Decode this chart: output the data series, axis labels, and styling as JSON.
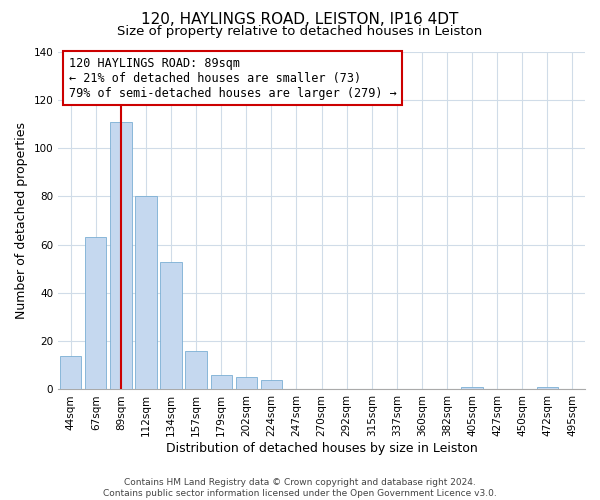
{
  "title": "120, HAYLINGS ROAD, LEISTON, IP16 4DT",
  "subtitle": "Size of property relative to detached houses in Leiston",
  "xlabel": "Distribution of detached houses by size in Leiston",
  "ylabel": "Number of detached properties",
  "footer_line1": "Contains HM Land Registry data © Crown copyright and database right 2024.",
  "footer_line2": "Contains public sector information licensed under the Open Government Licence v3.0.",
  "bar_labels": [
    "44sqm",
    "67sqm",
    "89sqm",
    "112sqm",
    "134sqm",
    "157sqm",
    "179sqm",
    "202sqm",
    "224sqm",
    "247sqm",
    "270sqm",
    "292sqm",
    "315sqm",
    "337sqm",
    "360sqm",
    "382sqm",
    "405sqm",
    "427sqm",
    "450sqm",
    "472sqm",
    "495sqm"
  ],
  "bar_values": [
    14,
    63,
    111,
    80,
    53,
    16,
    6,
    5,
    4,
    0,
    0,
    0,
    0,
    0,
    0,
    0,
    1,
    0,
    0,
    1,
    0
  ],
  "bar_color": "#c5d8ef",
  "bar_edge_color": "#7bafd4",
  "vline_x": 2,
  "vline_color": "#cc0000",
  "annotation_line1": "120 HAYLINGS ROAD: 89sqm",
  "annotation_line2": "← 21% of detached houses are smaller (73)",
  "annotation_line3": "79% of semi-detached houses are larger (279) →",
  "annotation_box_edgecolor": "#cc0000",
  "ylim": [
    0,
    140
  ],
  "yticks": [
    0,
    20,
    40,
    60,
    80,
    100,
    120,
    140
  ],
  "background_color": "#ffffff",
  "grid_color": "#d0dce8",
  "title_fontsize": 11,
  "subtitle_fontsize": 9.5,
  "xlabel_fontsize": 9,
  "ylabel_fontsize": 9,
  "tick_fontsize": 7.5,
  "annotation_fontsize": 8.5,
  "footer_fontsize": 6.5
}
